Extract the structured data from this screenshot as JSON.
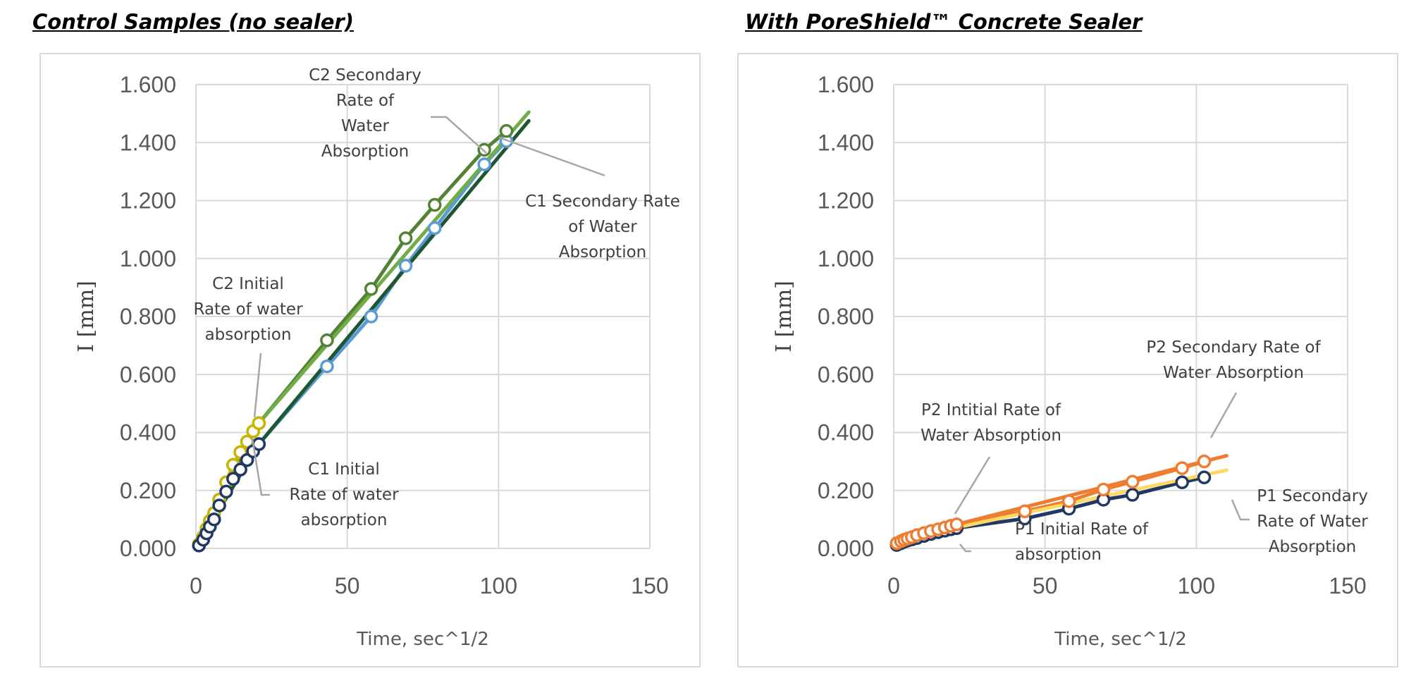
{
  "titles": {
    "left": "Control Samples (no sealer)",
    "right": "With PoreShield™ Concrete Sealer"
  },
  "chart_data": [
    {
      "type": "scatter",
      "title": "Control Samples (no sealer)",
      "xlabel": "Time, sec^1/2",
      "ylabel": "I [mm]",
      "xlim": [
        0,
        150
      ],
      "ylim": [
        0,
        1.6
      ],
      "x_ticks": [
        "0",
        "50",
        "100",
        "150"
      ],
      "y_ticks": [
        "0.000",
        "0.200",
        "0.400",
        "0.600",
        "0.800",
        "1.000",
        "1.200",
        "1.400",
        "1.600"
      ],
      "grid": true,
      "series": [
        {
          "color": "#5b9bd5",
          "marker": "open-circle",
          "x": [
            1.0,
            2.4,
            3.5,
            4.6,
            6.0,
            7.7,
            10.0,
            12.3,
            14.7,
            16.9,
            18.9,
            20.8,
            43.3,
            57.9,
            69.3,
            78.9,
            95.3,
            102.6
          ],
          "y": [
            0.01,
            0.03,
            0.052,
            0.075,
            0.1,
            0.148,
            0.196,
            0.24,
            0.272,
            0.305,
            0.335,
            0.36,
            0.628,
            0.8,
            0.975,
            1.105,
            1.325,
            1.405
          ]
        },
        {
          "color": "#548235",
          "marker": "open-circle",
          "x": [
            1.0,
            2.4,
            3.5,
            4.6,
            6.0,
            7.7,
            10.0,
            12.3,
            14.7,
            16.9,
            18.9,
            20.8,
            43.3,
            57.9,
            69.3,
            78.9,
            95.3,
            102.6
          ],
          "y": [
            0.015,
            0.04,
            0.068,
            0.095,
            0.122,
            0.168,
            0.228,
            0.288,
            0.332,
            0.368,
            0.404,
            0.432,
            0.718,
            0.895,
            1.07,
            1.185,
            1.375,
            1.44
          ]
        },
        {
          "color": "#c9b400",
          "marker": "open-circle",
          "x": [
            1.0,
            2.4,
            3.5,
            4.6,
            6.0,
            7.7,
            10.0,
            12.3,
            14.7,
            16.9,
            18.9,
            20.8
          ],
          "y": [
            0.015,
            0.04,
            0.068,
            0.095,
            0.122,
            0.168,
            0.228,
            0.288,
            0.332,
            0.368,
            0.404,
            0.432
          ]
        },
        {
          "color": "#1f3864",
          "marker": "open-circle",
          "x": [
            1.0,
            2.4,
            3.5,
            4.6,
            6.0,
            7.7,
            10.0,
            12.3,
            14.7,
            16.9,
            18.9,
            20.8
          ],
          "y": [
            0.01,
            0.03,
            0.052,
            0.075,
            0.1,
            0.148,
            0.196,
            0.24,
            0.272,
            0.305,
            0.335,
            0.36
          ]
        }
      ],
      "trendlines": [
        {
          "color": "#70ad47",
          "x": [
            20.8,
            110
          ],
          "y": [
            0.432,
            1.505
          ]
        },
        {
          "color": "#1e5631",
          "x": [
            20.8,
            110
          ],
          "y": [
            0.36,
            1.475
          ]
        },
        {
          "color": "#548235",
          "x": [
            0,
            20.8
          ],
          "y": [
            0.0,
            0.432
          ]
        },
        {
          "color": "#1e5631",
          "x": [
            0,
            20.8
          ],
          "y": [
            0.0,
            0.36
          ]
        }
      ],
      "annotations": [
        {
          "lines": [
            "C2 Secondary",
            "Rate of",
            "Water",
            "Absorption"
          ]
        },
        {
          "lines": [
            "C1 Secondary Rate",
            "of Water",
            "Absorption"
          ]
        },
        {
          "lines": [
            "C2 Initial",
            "Rate of water",
            "absorption"
          ]
        },
        {
          "lines": [
            "C1 Initial",
            "Rate of water",
            "absorption"
          ]
        }
      ]
    },
    {
      "type": "scatter",
      "title": "With PoreShield™ Concrete Sealer",
      "xlabel": "Time, sec^1/2",
      "ylabel": "I [mm]",
      "xlim": [
        0,
        150
      ],
      "ylim": [
        0,
        1.6
      ],
      "x_ticks": [
        "0",
        "50",
        "100",
        "150"
      ],
      "y_ticks": [
        "0.000",
        "0.200",
        "0.400",
        "0.600",
        "0.800",
        "1.000",
        "1.200",
        "1.400",
        "1.600"
      ],
      "grid": true,
      "series": [
        {
          "color": "#1f3864",
          "marker": "open-circle",
          "x": [
            1.0,
            2.4,
            3.5,
            4.6,
            6.0,
            7.7,
            10.0,
            12.3,
            14.7,
            16.9,
            18.9,
            20.8,
            43.3,
            57.9,
            69.3,
            78.9,
            95.3,
            102.6
          ],
          "y": [
            0.012,
            0.018,
            0.023,
            0.027,
            0.031,
            0.036,
            0.043,
            0.05,
            0.056,
            0.061,
            0.066,
            0.07,
            0.103,
            0.137,
            0.168,
            0.185,
            0.228,
            0.245
          ]
        },
        {
          "color": "#ed7d31",
          "marker": "open-circle",
          "x": [
            1.0,
            2.4,
            3.5,
            4.6,
            6.0,
            7.7,
            10.0,
            12.3,
            14.7,
            16.9,
            18.9,
            20.8,
            43.3,
            57.9,
            69.3,
            78.9,
            95.3,
            102.6
          ],
          "y": [
            0.018,
            0.025,
            0.03,
            0.034,
            0.039,
            0.046,
            0.053,
            0.06,
            0.066,
            0.072,
            0.078,
            0.083,
            0.128,
            0.163,
            0.203,
            0.23,
            0.277,
            0.3
          ]
        }
      ],
      "trendlines": [
        {
          "color": "#ffd966",
          "x": [
            20.8,
            110
          ],
          "y": [
            0.072,
            0.27
          ]
        },
        {
          "color": "#ed7d31",
          "x": [
            20.8,
            110
          ],
          "y": [
            0.083,
            0.32
          ]
        },
        {
          "color": "#1f3864",
          "x": [
            0,
            20.8
          ],
          "y": [
            0.008,
            0.07
          ]
        },
        {
          "color": "#ed7d31",
          "x": [
            0,
            20.8
          ],
          "y": [
            0.015,
            0.083
          ]
        }
      ],
      "annotations": [
        {
          "lines": [
            "P2 Secondary Rate of",
            "Water Absorption"
          ]
        },
        {
          "lines": [
            "P2 Intitial Rate of",
            "Water Absorption"
          ]
        },
        {
          "lines": [
            "P1 Initial Rate of",
            "absorption"
          ]
        },
        {
          "lines": [
            "P1 Secondary",
            "Rate of Water",
            "Absorption"
          ]
        }
      ]
    }
  ]
}
